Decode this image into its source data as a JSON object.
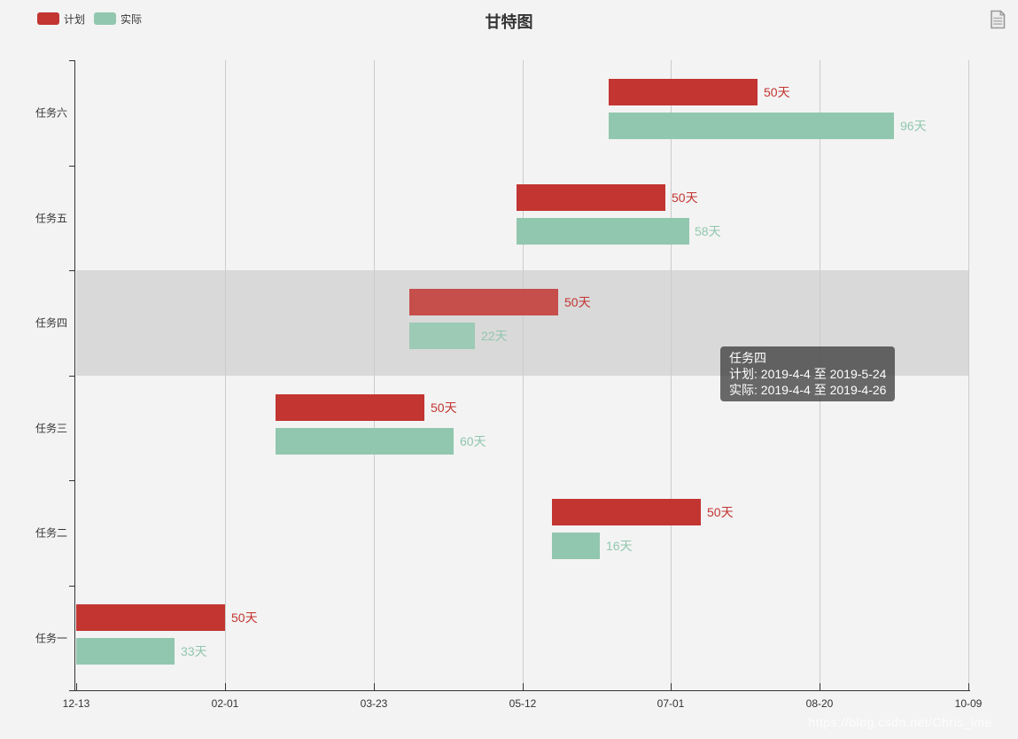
{
  "title": "甘特图",
  "watermark": "https://blog.csdn.net/Chris_lme",
  "legend": {
    "items": [
      {
        "label": "计划",
        "color": "#c23531",
        "key": "plan"
      },
      {
        "label": "实际",
        "color": "#91c7ae",
        "key": "actual"
      }
    ]
  },
  "toolbox": {
    "icons": [
      "data-view-icon"
    ]
  },
  "tooltip": {
    "title": "任务四",
    "plan_line": "计划: 2019-4-4 至 2019-5-24",
    "actual_line": "实际: 2019-4-4 至 2019-4-26"
  },
  "colors": {
    "plan": "#c23531",
    "actual": "#91c7ae",
    "background": "#f3f3f3",
    "highlight_band": "#d9d9d9",
    "axis": "#333333",
    "gridline": "#cccccc",
    "tooltip_bg": "rgba(50,50,50,0.72)",
    "label_text": "#333333"
  },
  "chart_data": {
    "type": "bar",
    "orientation": "horizontal-gantt",
    "title": "甘特图",
    "categories": [
      "任务一",
      "任务二",
      "任务三",
      "任务四",
      "任务五",
      "任务六"
    ],
    "x_axis": {
      "tick_labels": [
        "12-13",
        "02-01",
        "03-23",
        "05-12",
        "07-01",
        "08-20",
        "10-09"
      ],
      "tick_day_offsets": [
        0,
        50,
        100,
        150,
        200,
        250,
        300
      ],
      "range_day_offsets": [
        0,
        300
      ],
      "interval_days": 50
    },
    "grid": true,
    "legend_position": "top-left",
    "highlighted_category": "任务四",
    "series": [
      {
        "name": "计划",
        "color": "#c23531",
        "bars": [
          {
            "category": "任务一",
            "start_day": 0,
            "duration_days": 50,
            "label": "50天"
          },
          {
            "category": "任务二",
            "start_day": 160,
            "duration_days": 50,
            "label": "50天"
          },
          {
            "category": "任务三",
            "start_day": 67,
            "duration_days": 50,
            "label": "50天"
          },
          {
            "category": "任务四",
            "start_day": 112,
            "duration_days": 50,
            "label": "50天"
          },
          {
            "category": "任务五",
            "start_day": 148,
            "duration_days": 50,
            "label": "50天"
          },
          {
            "category": "任务六",
            "start_day": 179,
            "duration_days": 50,
            "label": "50天"
          }
        ]
      },
      {
        "name": "实际",
        "color": "#91c7ae",
        "bars": [
          {
            "category": "任务一",
            "start_day": 0,
            "duration_days": 33,
            "label": "33天"
          },
          {
            "category": "任务二",
            "start_day": 160,
            "duration_days": 16,
            "label": "16天"
          },
          {
            "category": "任务三",
            "start_day": 67,
            "duration_days": 60,
            "label": "60天"
          },
          {
            "category": "任务四",
            "start_day": 112,
            "duration_days": 22,
            "label": "22天"
          },
          {
            "category": "任务五",
            "start_day": 148,
            "duration_days": 58,
            "label": "58天"
          },
          {
            "category": "任务六",
            "start_day": 179,
            "duration_days": 96,
            "label": "96天"
          }
        ]
      }
    ]
  }
}
